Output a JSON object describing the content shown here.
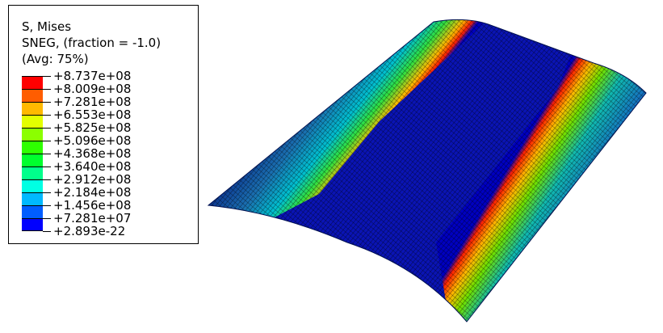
{
  "legend": {
    "title_lines": [
      "S, Mises",
      "SNEG, (fraction = -1.0)",
      "(Avg: 75%)"
    ],
    "labels": [
      "+8.737e+08",
      "+8.009e+08",
      "+7.281e+08",
      "+6.553e+08",
      "+5.825e+08",
      "+5.096e+08",
      "+4.368e+08",
      "+3.640e+08",
      "+2.912e+08",
      "+2.184e+08",
      "+1.456e+08",
      "+7.281e+07",
      "+2.893e-22"
    ],
    "colors": [
      "#FF0000",
      "#FF5D00",
      "#FFB900",
      "#E3FF00",
      "#8BFF00",
      "#2EFF00",
      "#00FF2E",
      "#00FF8B",
      "#00FFE3",
      "#00B9FF",
      "#005DFF",
      "#0000FF"
    ]
  }
}
